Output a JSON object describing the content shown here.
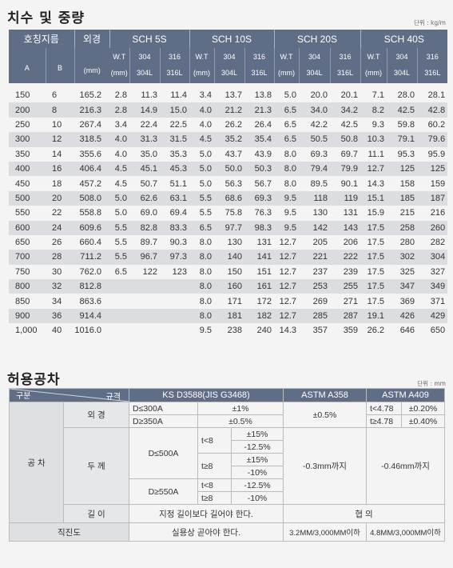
{
  "section1": {
    "title": "치수 및 중량",
    "unit": "단위 : kg/m",
    "header": {
      "nominal": "호칭지름",
      "od": "외경",
      "sch": [
        "SCH 5S",
        "SCH 10S",
        "SCH 20S",
        "SCH 40S"
      ],
      "a": "A",
      "b": "B",
      "od_unit": "(mm)",
      "wt": "W.T",
      "wt_unit": "(mm)",
      "m304": "304",
      "m304l": "304L",
      "m316": "316",
      "m316l": "316L"
    },
    "rows": [
      [
        "150",
        "6",
        "165.2",
        "2.8",
        "11.3",
        "11.4",
        "3.4",
        "13.7",
        "13.8",
        "5.0",
        "20.0",
        "20.1",
        "7.1",
        "28.0",
        "28.1"
      ],
      [
        "200",
        "8",
        "216.3",
        "2.8",
        "14.9",
        "15.0",
        "4.0",
        "21.2",
        "21.3",
        "6.5",
        "34.0",
        "34.2",
        "8.2",
        "42.5",
        "42.8"
      ],
      [
        "250",
        "10",
        "267.4",
        "3.4",
        "22.4",
        "22.5",
        "4.0",
        "26.2",
        "26.4",
        "6.5",
        "42.2",
        "42.5",
        "9.3",
        "59.8",
        "60.2"
      ],
      [
        "300",
        "12",
        "318.5",
        "4.0",
        "31.3",
        "31.5",
        "4.5",
        "35.2",
        "35.4",
        "6.5",
        "50.5",
        "50.8",
        "10.3",
        "79.1",
        "79.6"
      ],
      [
        "350",
        "14",
        "355.6",
        "4.0",
        "35.0",
        "35.3",
        "5.0",
        "43.7",
        "43.9",
        "8.0",
        "69.3",
        "69.7",
        "11.1",
        "95.3",
        "95.9"
      ],
      [
        "400",
        "16",
        "406.4",
        "4.5",
        "45.1",
        "45.3",
        "5.0",
        "50.0",
        "50.3",
        "8.0",
        "79.4",
        "79.9",
        "12.7",
        "125",
        "125"
      ],
      [
        "450",
        "18",
        "457.2",
        "4.5",
        "50.7",
        "51.1",
        "5.0",
        "56.3",
        "56.7",
        "8.0",
        "89.5",
        "90.1",
        "14.3",
        "158",
        "159"
      ],
      [
        "500",
        "20",
        "508.0",
        "5.0",
        "62.6",
        "63.1",
        "5.5",
        "68.6",
        "69.3",
        "9.5",
        "118",
        "119",
        "15.1",
        "185",
        "187"
      ],
      [
        "550",
        "22",
        "558.8",
        "5.0",
        "69.0",
        "69.4",
        "5.5",
        "75.8",
        "76.3",
        "9.5",
        "130",
        "131",
        "15.9",
        "215",
        "216"
      ],
      [
        "600",
        "24",
        "609.6",
        "5.5",
        "82.8",
        "83.3",
        "6.5",
        "97.7",
        "98.3",
        "9.5",
        "142",
        "143",
        "17.5",
        "258",
        "260"
      ],
      [
        "650",
        "26",
        "660.4",
        "5.5",
        "89.7",
        "90.3",
        "8.0",
        "130",
        "131",
        "12.7",
        "205",
        "206",
        "17.5",
        "280",
        "282"
      ],
      [
        "700",
        "28",
        "711.2",
        "5.5",
        "96.7",
        "97.3",
        "8.0",
        "140",
        "141",
        "12.7",
        "221",
        "222",
        "17.5",
        "302",
        "304"
      ],
      [
        "750",
        "30",
        "762.0",
        "6.5",
        "122",
        "123",
        "8.0",
        "150",
        "151",
        "12.7",
        "237",
        "239",
        "17.5",
        "325",
        "327"
      ],
      [
        "800",
        "32",
        "812.8",
        "",
        "",
        "",
        "8.0",
        "160",
        "161",
        "12.7",
        "253",
        "255",
        "17.5",
        "347",
        "349"
      ],
      [
        "850",
        "34",
        "863.6",
        "",
        "",
        "",
        "8.0",
        "171",
        "172",
        "12.7",
        "269",
        "271",
        "17.5",
        "369",
        "371"
      ],
      [
        "900",
        "36",
        "914.4",
        "",
        "",
        "",
        "8.0",
        "181",
        "182",
        "12.7",
        "285",
        "287",
        "19.1",
        "426",
        "429"
      ],
      [
        "1,000",
        "40",
        "1016.0",
        "",
        "",
        "",
        "9.5",
        "238",
        "240",
        "14.3",
        "357",
        "359",
        "26.2",
        "646",
        "650"
      ]
    ]
  },
  "section2": {
    "title": "허용공차",
    "unit": "단위 : mm",
    "hdr_left_top": "규격",
    "hdr_left_bottom": "구분",
    "hdr_ks": "KS D3588(JIS G3468)",
    "hdr_a358": "ASTM A358",
    "hdr_a409": "ASTM A409",
    "cat_main": "공 차",
    "od_label": "외 경",
    "od_r1_cond": "D≤300A",
    "od_r1_val": "±1%",
    "od_r2_cond": "D≥350A",
    "od_r2_val": "±0.5%",
    "od_a358": "±0.5%",
    "od_a409_r1_cond": "t<4.78",
    "od_a409_r1_val": "±0.20%",
    "od_a409_r2_cond": "t≥4.78",
    "od_a409_r2_val": "±0.40%",
    "wt_label": "두 께",
    "wt_d1_cond": "D≤500A",
    "wt_t1_cond": "t<8",
    "wt_t1_plus": "±15%",
    "wt_t1_minus": "-12.5%",
    "wt_t2_cond": "t≥8",
    "wt_t2_plus": "±15%",
    "wt_t2_minus": "-10%",
    "wt_d2_cond": "D≥550A",
    "wt_t3_cond": "t<8",
    "wt_t3_val": "-12.5%",
    "wt_t4_cond": "t≥8",
    "wt_t4_val": "-10%",
    "wt_a358": "-0.3mm까지",
    "wt_a409": "-0.46mm까지",
    "len_label": "길 이",
    "len_ks": "지정 길이보다 길어야 한다.",
    "len_astm": "협 의",
    "str_label": "직진도",
    "str_ks": "실용상 곧아야 한다.",
    "str_a358": "3.2MM/3,000MM이하",
    "str_a409": "4.8MM/3,000MM이하"
  }
}
